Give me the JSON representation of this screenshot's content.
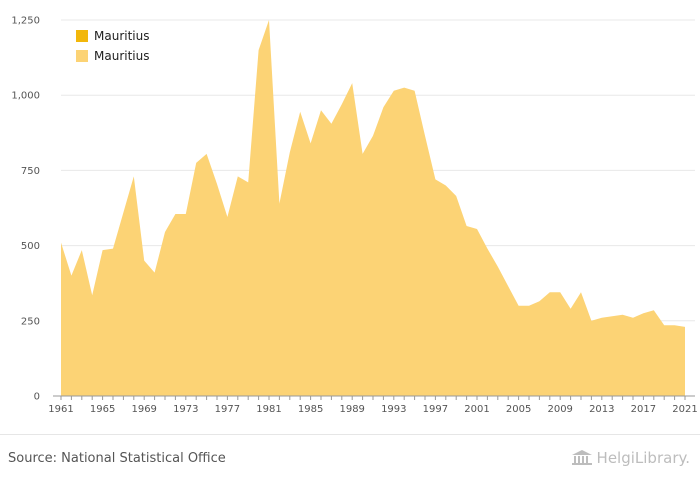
{
  "colors": {
    "series_dark": "#f2b70b",
    "series_light": "#fcd375",
    "grid": "#e8e8e8",
    "axis": "#999999"
  },
  "chart_data": {
    "type": "area",
    "title": "",
    "xlabel": "",
    "ylabel": "",
    "ylim": [
      0,
      1250
    ],
    "xlim": [
      1961,
      2021
    ],
    "yticks": [
      0,
      250,
      500,
      750,
      1000,
      1250
    ],
    "ytick_labels": [
      "0",
      "250",
      "500",
      "750",
      "1,000",
      "1,250"
    ],
    "xticks": [
      1961,
      1965,
      1969,
      1973,
      1977,
      1981,
      1985,
      1989,
      1993,
      1997,
      2001,
      2005,
      2009,
      2013,
      2017,
      2021
    ],
    "grid": true,
    "legend": {
      "placement": "top-left",
      "entries": [
        {
          "name": "Mauritius",
          "color": "#f2b70b"
        },
        {
          "name": "Mauritius",
          "color": "#fcd375"
        }
      ]
    },
    "series": [
      {
        "name": "Mauritius",
        "x": [
          1961,
          1962,
          1963,
          1964,
          1965,
          1966,
          1967,
          1968,
          1969,
          1970,
          1971,
          1972,
          1973,
          1974,
          1975,
          1976,
          1977,
          1978,
          1979,
          1980,
          1981,
          1982,
          1983,
          1984,
          1985,
          1986,
          1987,
          1988,
          1989,
          1990,
          1991,
          1992,
          1993,
          1994,
          1995,
          1996,
          1997,
          1998,
          1999,
          2000,
          2001,
          2002,
          2003,
          2004,
          2005,
          2006,
          2007,
          2008,
          2009,
          2010,
          2011,
          2012,
          2013,
          2014,
          2015,
          2016,
          2017,
          2018,
          2019,
          2020,
          2021
        ],
        "values": [
          510,
          400,
          485,
          335,
          485,
          490,
          610,
          730,
          450,
          410,
          545,
          605,
          605,
          775,
          805,
          705,
          595,
          730,
          710,
          1150,
          1250,
          640,
          810,
          945,
          840,
          950,
          905,
          970,
          1040,
          805,
          865,
          960,
          1015,
          1025,
          1015,
          865,
          720,
          700,
          665,
          565,
          555,
          490,
          430,
          365,
          300,
          300,
          315,
          345,
          345,
          290,
          345,
          250,
          260,
          265,
          270,
          260,
          275,
          285,
          235,
          235,
          230
        ]
      }
    ]
  },
  "footer": {
    "source": "Source: National Statistical Office",
    "brand": "HelgiLibrary."
  }
}
